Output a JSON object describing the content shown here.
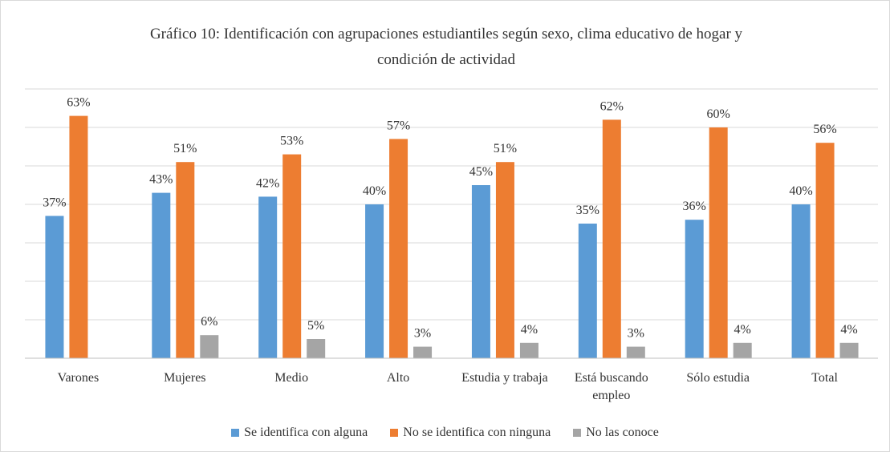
{
  "chart_data": {
    "type": "bar",
    "title": "Gráfico 10: Identificación con agrupaciones estudiantiles según sexo, clima educativo de hogar y condición de actividad",
    "categories": [
      "Varones",
      "Mujeres",
      "Medio",
      "Alto",
      "Estudia y trabaja",
      "Está buscando empleo",
      "Sólo estudia",
      "Total"
    ],
    "series": [
      {
        "name": "Se identifica con alguna",
        "color": "#5b9bd5",
        "values": [
          37,
          43,
          42,
          40,
          45,
          35,
          36,
          40
        ],
        "value_labels": [
          "37%",
          "43%",
          "42%",
          "40%",
          "45%",
          "35%",
          "36%",
          "40%"
        ]
      },
      {
        "name": "No se identifica con ninguna",
        "color": "#ed7d31",
        "values": [
          63,
          51,
          53,
          57,
          51,
          62,
          60,
          56
        ],
        "value_labels": [
          "63%",
          "51%",
          "53%",
          "57%",
          "51%",
          "62%",
          "60%",
          "56%"
        ]
      },
      {
        "name": "No las conoce",
        "color": "#a5a5a5",
        "values": [
          null,
          6,
          5,
          3,
          4,
          3,
          4,
          4
        ],
        "value_labels": [
          null,
          "6%",
          "5%",
          "3%",
          "4%",
          "3%",
          "4%",
          "4%"
        ]
      }
    ],
    "ylim": [
      0,
      70
    ],
    "yticks": [
      0,
      10,
      20,
      30,
      40,
      50,
      60,
      70
    ],
    "grid": true,
    "legend": "bottom"
  }
}
